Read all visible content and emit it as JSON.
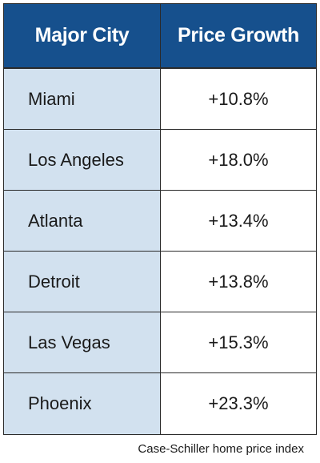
{
  "chart_data": {
    "type": "table",
    "columns": [
      "Major City",
      "Price Growth"
    ],
    "rows": [
      {
        "city": "Miami",
        "growth": "+10.8%"
      },
      {
        "city": "Los Angeles",
        "growth": "+18.0%"
      },
      {
        "city": "Atlanta",
        "growth": "+13.4%"
      },
      {
        "city": "Detroit",
        "growth": "+13.8%"
      },
      {
        "city": "Las Vegas",
        "growth": "+15.3%"
      },
      {
        "city": "Phoenix",
        "growth": "+23.3%"
      }
    ],
    "values": [
      10.8,
      18.0,
      13.4,
      13.8,
      15.3,
      23.3
    ],
    "source": "Case-Schiller home price index"
  },
  "colors": {
    "header_bg": "#16508d",
    "city_cell_bg": "#d2e1ef",
    "border": "#2a2a2a"
  }
}
